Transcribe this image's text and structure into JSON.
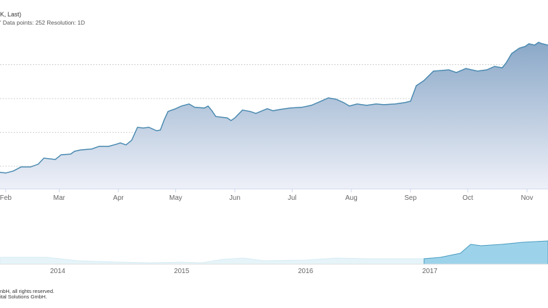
{
  "header": {
    "title": "K, Last)",
    "subtitle": "' Data points: 252 Resolution: 1D"
  },
  "footer": {
    "line1": "nbH, all rights reserved.",
    "line2": "ital Solutions GmbH."
  },
  "colors": {
    "line": "#4a8ab0",
    "area_top": "#8aa8c8",
    "area_bottom": "#eef0f8",
    "navigator_fill": "#9dd3ea",
    "navigator_bg": "#e6f4f9"
  },
  "chart_data": {
    "type": "area",
    "title": "",
    "xlabel": "",
    "ylabel": "",
    "grid": true,
    "x_tick_labels": [
      "Feb",
      "Mar",
      "Apr",
      "May",
      "Jun",
      "Jul",
      "Aug",
      "Sep",
      "Oct",
      "Nov"
    ],
    "x_ticks": [
      "2017-02-01",
      "2017-03-01",
      "2017-04-01",
      "2017-05-01",
      "2017-06-01",
      "2017-07-01",
      "2017-08-01",
      "2017-09-01",
      "2017-10-01",
      "2017-11-01"
    ],
    "xlim": [
      "2017-01-29",
      "2017-11-12"
    ],
    "ylim": [
      0.33,
      4.8
    ],
    "gridlines_y": [
      1,
      2,
      3,
      4
    ],
    "series": [
      {
        "x": [
          "2017-01-29",
          "2017-02-01",
          "2017-02-05",
          "2017-02-09",
          "2017-02-14",
          "2017-02-18",
          "2017-02-21",
          "2017-02-27",
          "2017-03-02",
          "2017-03-07",
          "2017-03-09",
          "2017-03-12",
          "2017-03-18",
          "2017-03-22",
          "2017-03-27",
          "2017-03-31",
          "2017-04-02",
          "2017-04-05",
          "2017-04-08",
          "2017-04-11",
          "2017-04-14",
          "2017-04-17",
          "2017-04-21",
          "2017-04-23",
          "2017-04-25",
          "2017-04-27",
          "2017-05-01",
          "2017-05-04",
          "2017-05-08",
          "2017-05-11",
          "2017-05-16",
          "2017-05-18",
          "2017-05-20",
          "2017-05-22",
          "2017-05-28",
          "2017-05-30",
          "2017-06-01",
          "2017-06-05",
          "2017-06-09",
          "2017-06-12",
          "2017-06-18",
          "2017-06-21",
          "2017-06-25",
          "2017-06-30",
          "2017-07-06",
          "2017-07-11",
          "2017-07-16",
          "2017-07-20",
          "2017-07-24",
          "2017-07-28",
          "2017-07-31",
          "2017-08-04",
          "2017-08-09",
          "2017-08-14",
          "2017-08-18",
          "2017-08-24",
          "2017-08-29",
          "2017-09-01",
          "2017-09-04",
          "2017-09-08",
          "2017-09-13",
          "2017-09-17",
          "2017-09-21",
          "2017-09-25",
          "2017-09-30",
          "2017-10-06",
          "2017-10-11",
          "2017-10-15",
          "2017-10-19",
          "2017-10-21",
          "2017-10-24",
          "2017-10-28",
          "2017-10-31",
          "2017-11-02",
          "2017-11-05",
          "2017-11-07",
          "2017-11-09",
          "2017-11-12"
        ],
        "y": [
          0.82,
          0.8,
          0.86,
          0.98,
          0.98,
          1.06,
          1.24,
          1.2,
          1.34,
          1.36,
          1.44,
          1.48,
          1.51,
          1.59,
          1.59,
          1.65,
          1.69,
          1.63,
          1.77,
          2.15,
          2.13,
          2.15,
          2.05,
          2.07,
          2.37,
          2.62,
          2.7,
          2.78,
          2.84,
          2.74,
          2.72,
          2.78,
          2.64,
          2.47,
          2.43,
          2.35,
          2.43,
          2.66,
          2.62,
          2.56,
          2.7,
          2.64,
          2.68,
          2.72,
          2.74,
          2.8,
          2.92,
          3.02,
          2.98,
          2.88,
          2.78,
          2.84,
          2.8,
          2.84,
          2.82,
          2.84,
          2.88,
          2.92,
          3.38,
          3.53,
          3.81,
          3.83,
          3.85,
          3.77,
          3.89,
          3.81,
          3.85,
          3.95,
          3.91,
          4.05,
          4.33,
          4.49,
          4.54,
          4.62,
          4.58,
          4.66,
          4.62,
          4.58
        ]
      }
    ],
    "navigator": {
      "x_tick_labels": [
        "2014",
        "2015",
        "2016",
        "2017"
      ],
      "x_ticks": [
        "2014-01-01",
        "2015-01-01",
        "2016-01-01",
        "2017-01-01"
      ],
      "xlim": [
        "2013-07-15",
        "2017-12-15"
      ],
      "selection": [
        "2016-12-15",
        "2017-12-15"
      ],
      "x": [
        "2013-07-15",
        "2013-12-01",
        "2014-03-01",
        "2014-07-01",
        "2014-10-01",
        "2015-01-01",
        "2015-03-01",
        "2015-05-01",
        "2015-07-01",
        "2015-09-01",
        "2016-01-01",
        "2016-04-01",
        "2016-07-01",
        "2016-12-15",
        "2017-02-01",
        "2017-04-01",
        "2017-05-01",
        "2017-06-01",
        "2017-08-01",
        "2017-10-01",
        "2017-12-15"
      ],
      "y": [
        1.0,
        1.0,
        0.5,
        0.3,
        0.2,
        0.3,
        0.2,
        0.7,
        0.9,
        0.5,
        0.6,
        0.9,
        0.8,
        0.8,
        1.0,
        1.6,
        2.9,
        2.7,
        2.9,
        3.2,
        3.4
      ]
    }
  }
}
